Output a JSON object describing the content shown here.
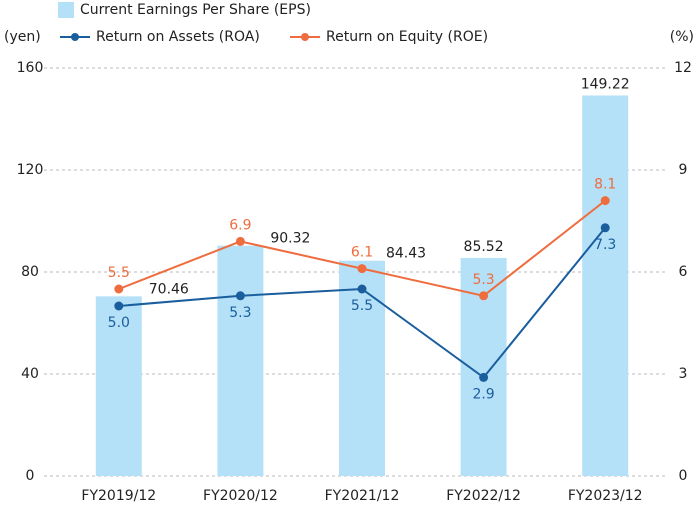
{
  "chart_data": {
    "type": "combo",
    "categories": [
      "FY2019/12",
      "FY2020/12",
      "FY2021/12",
      "FY2022/12",
      "FY2023/12"
    ],
    "y_label": "(yen)",
    "y2_label": "(%)",
    "ylim": [
      0,
      160
    ],
    "yticks": [
      0,
      40,
      80,
      120,
      160
    ],
    "y2lim": [
      0,
      12
    ],
    "y2ticks": [
      0,
      3,
      6,
      9,
      12
    ],
    "grid": true,
    "series": [
      {
        "name": "Current Earnings Per Share (EPS)",
        "type": "bar",
        "axis": "y",
        "color": "#b5e1f8",
        "values": [
          70.46,
          90.32,
          84.43,
          85.52,
          149.22
        ]
      },
      {
        "name": "Return on Assets (ROA)",
        "type": "line",
        "axis": "y2",
        "color": "#1a5e9e",
        "values": [
          5.0,
          5.3,
          5.5,
          2.9,
          7.3
        ],
        "value_labels": [
          "5.0",
          "5.3",
          "5.5",
          "2.9",
          "7.3"
        ]
      },
      {
        "name": "Return on Equity (ROE)",
        "type": "line",
        "axis": "y2",
        "color": "#ee6c3e",
        "values": [
          5.5,
          6.9,
          6.1,
          5.3,
          8.1
        ]
      }
    ]
  }
}
